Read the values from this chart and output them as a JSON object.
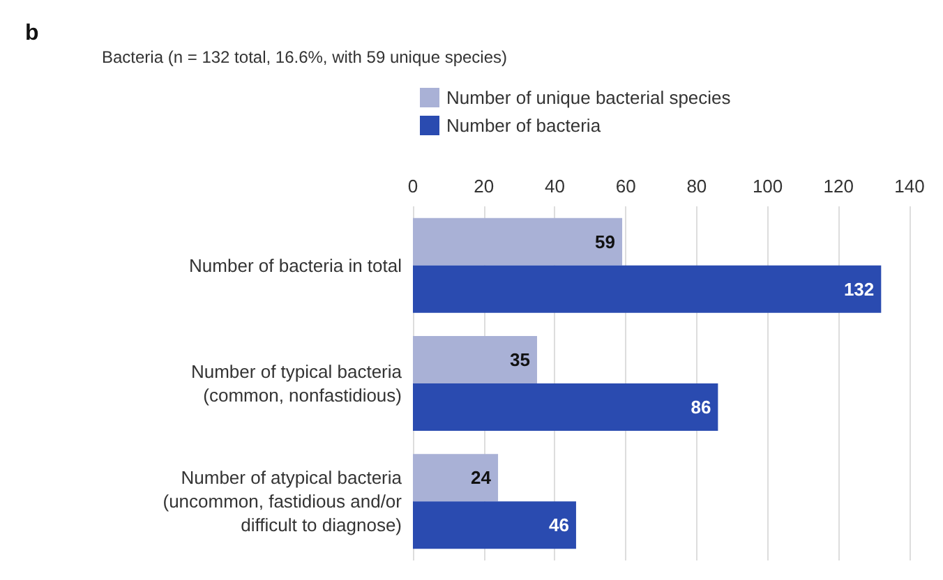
{
  "chart_data": {
    "type": "bar",
    "orientation": "horizontal",
    "title": "Bacteria (n = 132 total, 16.6%, with 59 unique species)",
    "annotations": [
      "b"
    ],
    "categories": [
      "Number of bacteria in total",
      "Number of typical bacteria\n(common, nonfastidious)",
      "Number of atypical bacteria\n(uncommon, fastidious and/or\ndifficult to diagnose)"
    ],
    "series": [
      {
        "name": "Number of unique bacterial species",
        "color": "#a9b1d6",
        "values": [
          59,
          35,
          24
        ]
      },
      {
        "name": "Number of bacteria",
        "color": "#2a4bb0",
        "values": [
          132,
          86,
          46
        ]
      }
    ],
    "xlim": [
      0,
      140
    ],
    "xticks": [
      0,
      20,
      40,
      60,
      80,
      100,
      120,
      140
    ],
    "grid": "x",
    "legend": "top",
    "data_labels": true
  }
}
